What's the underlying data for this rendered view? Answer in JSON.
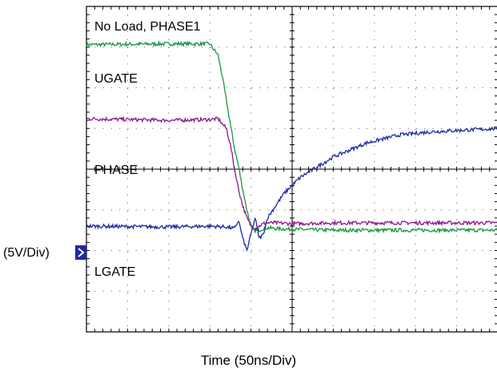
{
  "chart_data": {
    "type": "line",
    "title": "",
    "annotation": "No Load, PHASE1",
    "ylabel": "(5V/Div)",
    "xlabel": "Time  (50ns/Div)",
    "x_unit": "ns",
    "grid": true,
    "divisions": {
      "x": 10,
      "y": 8
    },
    "xlim": [
      0,
      500
    ],
    "series": [
      {
        "name": "UGATE",
        "color": "#1a9641",
        "x": [
          0,
          100,
          150,
          160,
          165,
          170,
          175,
          180,
          185,
          190,
          195,
          200,
          205,
          210,
          215,
          220,
          230,
          250,
          300,
          400,
          500
        ],
        "y": [
          15.3,
          15.4,
          15.4,
          14.0,
          11.5,
          8.5,
          5.5,
          2.5,
          0.3,
          -2.5,
          -5.0,
          -7.0,
          -7.6,
          -7.5,
          -7.3,
          -7.2,
          -7.3,
          -7.4,
          -7.5,
          -7.5,
          -7.5
        ]
      },
      {
        "name": "PHASE",
        "color": "#8b1a8b",
        "x": [
          0,
          100,
          150,
          160,
          170,
          175,
          180,
          185,
          190,
          195,
          200,
          205,
          210,
          215,
          220,
          230,
          250,
          300,
          400,
          500
        ],
        "y": [
          6.2,
          6.0,
          6.1,
          6.2,
          5.0,
          3.0,
          0.0,
          -2.5,
          -4.5,
          -6.0,
          -7.0,
          -7.3,
          -7.0,
          -6.7,
          -6.6,
          -6.6,
          -6.7,
          -6.6,
          -6.6,
          -6.6
        ]
      },
      {
        "name": "LGATE",
        "color": "#1f2a9c",
        "x": [
          0,
          100,
          150,
          170,
          180,
          185,
          190,
          195,
          200,
          205,
          210,
          215,
          220,
          240,
          260,
          300,
          340,
          380,
          420,
          460,
          500
        ],
        "y": [
          -7.0,
          -7.1,
          -7.0,
          -7.1,
          -7.3,
          -6.3,
          -8.5,
          -10.0,
          -8.0,
          -6.0,
          -8.5,
          -8.0,
          -6.0,
          -3.0,
          -1.0,
          1.5,
          3.2,
          4.2,
          4.6,
          4.8,
          5.0
        ]
      }
    ],
    "ylim": [
      -20,
      20
    ]
  }
}
